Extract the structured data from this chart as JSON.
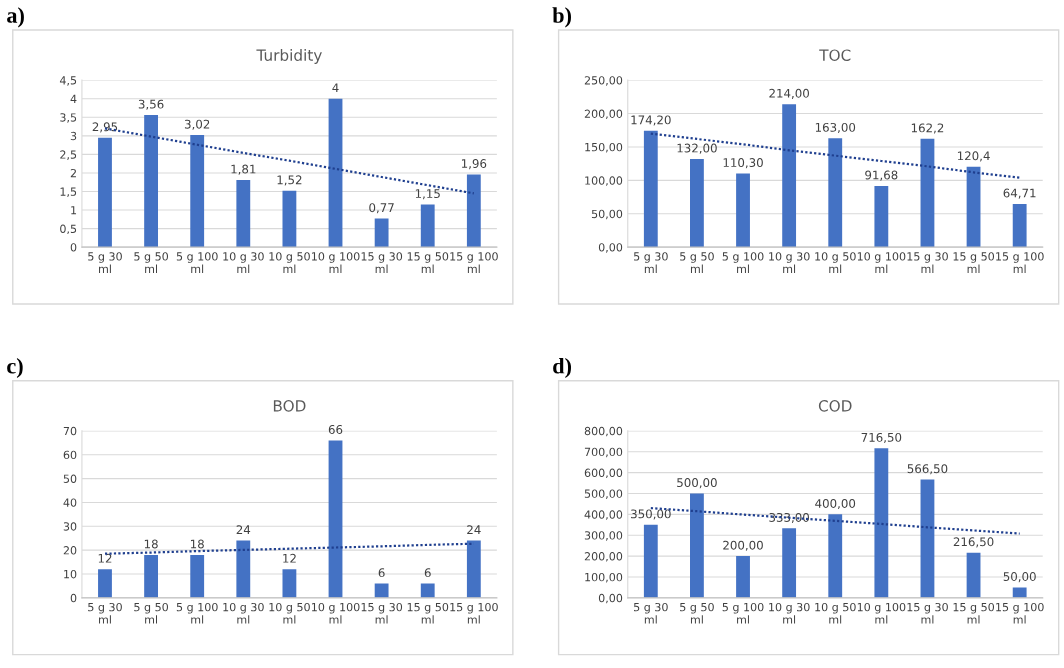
{
  "chart_data": [
    {
      "type": "bar",
      "title": "Turbidity",
      "annotations": [
        "a)"
      ],
      "categories": [
        "5 g 30 ml",
        "5 g 50 ml",
        "5 g 100 ml",
        "10 g 30 ml",
        "10 g 50 ml",
        "10 g 100 ml",
        "15 g 30 ml",
        "15 g 50 ml",
        "15 g 100 ml"
      ],
      "series": [
        {
          "color": "#4472c4",
          "values": [
            2.95,
            3.56,
            3.02,
            1.81,
            1.52,
            4,
            0.77,
            1.15,
            1.96
          ],
          "value_labels": [
            "2,95",
            "3,56",
            "3,02",
            "1,81",
            "1,52",
            "4",
            "0,77",
            "1,15",
            "1,96"
          ]
        },
        {
          "type": "line",
          "color": "#1f3f8f",
          "line_style": "dotted",
          "values": [
            3.2,
            2.98,
            2.76,
            2.54,
            2.33,
            2.11,
            1.89,
            1.67,
            1.45
          ]
        }
      ],
      "ylim": [
        0,
        4.5
      ],
      "yticks": [
        0,
        {
          "value": 0.5,
          "label": "0,5"
        },
        1,
        {
          "value": 1.5,
          "label": "1,5"
        },
        2,
        {
          "value": 2.5,
          "label": "2,5"
        },
        3,
        {
          "value": 3.5,
          "label": "3,5"
        },
        4,
        {
          "value": 4.5,
          "label": "4,5"
        }
      ],
      "grid": "y"
    },
    {
      "type": "bar",
      "title": "TOC",
      "annotations": [
        "b)"
      ],
      "categories": [
        "5 g 30 ml",
        "5 g 50 ml",
        "5 g 100 ml",
        "10 g 30 ml",
        "10 g 50 ml",
        "10 g 100 ml",
        "15 g 30 ml",
        "15 g 50 ml",
        "15 g 100 ml"
      ],
      "series": [
        {
          "color": "#4472c4",
          "values": [
            174.2,
            132,
            110.3,
            214,
            163,
            91.68,
            162.2,
            120.4,
            64.71
          ],
          "value_labels": [
            "174,20",
            "132,00",
            "110,30",
            "214,00",
            "163,00",
            "91,68",
            "162,2",
            "120,4",
            "64,71"
          ]
        },
        {
          "type": "line",
          "color": "#1f3f8f",
          "line_style": "dotted",
          "values": [
            170,
            162,
            154,
            145,
            137,
            129,
            121,
            112,
            104
          ]
        }
      ],
      "ylim": [
        0,
        250
      ],
      "yticks": [
        {
          "value": 0,
          "label": "0,00"
        },
        {
          "value": 50,
          "label": "50,00"
        },
        {
          "value": 100,
          "label": "100,00"
        },
        {
          "value": 150,
          "label": "150,00"
        },
        {
          "value": 200,
          "label": "200,00"
        },
        {
          "value": 250,
          "label": "250,00"
        }
      ],
      "grid": "y"
    },
    {
      "type": "bar",
      "title": "BOD",
      "annotations": [
        "c)"
      ],
      "categories": [
        "5 g 30 ml",
        "5 g 50 ml",
        "5 g 100 ml",
        "10 g 30 ml",
        "10 g 50 ml",
        "10 g 100 ml",
        "15 g 30 ml",
        "15 g 50 ml",
        "15 g 100 ml"
      ],
      "series": [
        {
          "color": "#4472c4",
          "values": [
            12,
            18,
            18,
            24,
            12,
            66,
            6,
            6,
            24
          ],
          "value_labels": [
            "12",
            "18",
            "18",
            "24",
            "12",
            "66",
            "6",
            "6",
            "24"
          ]
        },
        {
          "type": "line",
          "color": "#1f3f8f",
          "line_style": "dotted",
          "values": [
            18.5,
            19,
            19.6,
            20.1,
            20.6,
            21.1,
            21.6,
            22.2,
            22.7
          ]
        }
      ],
      "ylim": [
        0,
        70
      ],
      "yticks": [
        0,
        10,
        20,
        30,
        40,
        50,
        60,
        70
      ],
      "grid": "y"
    },
    {
      "type": "bar",
      "title": "COD",
      "annotations": [
        "d)"
      ],
      "categories": [
        "5 g 30 ml",
        "5 g 50 ml",
        "5 g 100 ml",
        "10 g 30 ml",
        "10 g 50 ml",
        "10 g 100 ml",
        "15 g 30 ml",
        "15 g 50 ml",
        "15 g 100 ml"
      ],
      "series": [
        {
          "color": "#4472c4",
          "values": [
            350,
            500,
            200,
            333,
            400,
            716.5,
            566.5,
            216.5,
            50
          ],
          "value_labels": [
            "350,00",
            "500,00",
            "200,00",
            "333,00",
            "400,00",
            "716,50",
            "566,50",
            "216,50",
            "50,00"
          ]
        },
        {
          "type": "line",
          "color": "#1f3f8f",
          "line_style": "dotted",
          "values": [
            430,
            415,
            399,
            384,
            369,
            354,
            338,
            323,
            308
          ]
        }
      ],
      "ylim": [
        0,
        800
      ],
      "yticks": [
        {
          "value": 0,
          "label": "0,00"
        },
        {
          "value": 100,
          "label": "100,00"
        },
        {
          "value": 200,
          "label": "200,00"
        },
        {
          "value": 300,
          "label": "300,00"
        },
        {
          "value": 400,
          "label": "400,00"
        },
        {
          "value": 500,
          "label": "500,00"
        },
        {
          "value": 600,
          "label": "600,00"
        },
        {
          "value": 700,
          "label": "700,00"
        },
        {
          "value": 800,
          "label": "800,00"
        }
      ],
      "grid": "y"
    }
  ]
}
